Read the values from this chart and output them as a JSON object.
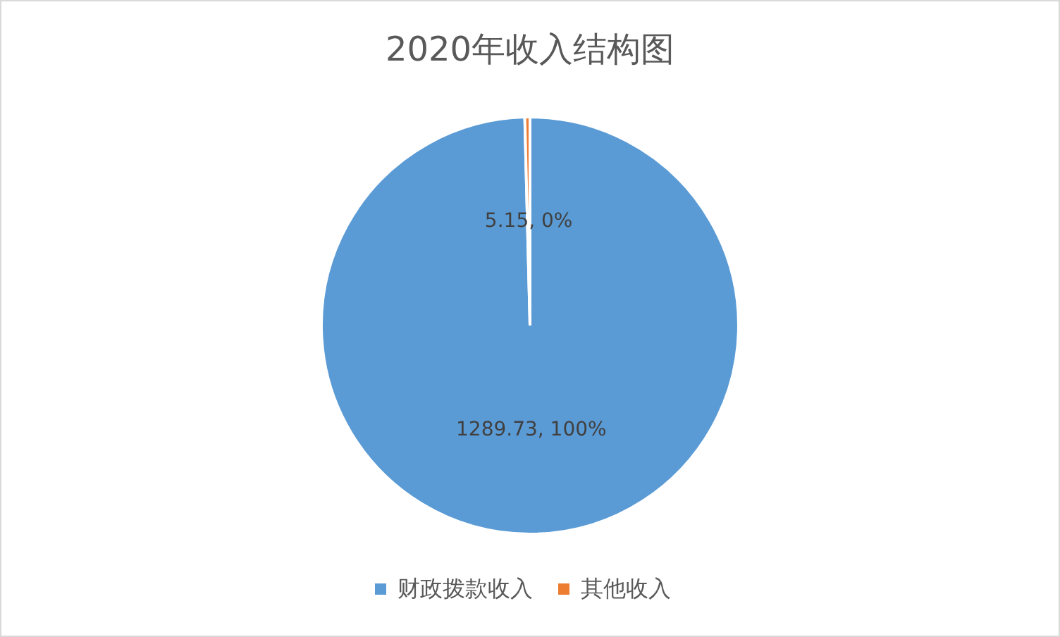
{
  "chart_data": {
    "type": "pie",
    "title": "2020年收入结构图",
    "categories": [
      "财政拨款收入",
      "其他收入"
    ],
    "values": [
      1289.73,
      5.15
    ],
    "colors": [
      "#5b9bd5",
      "#ed7d31"
    ],
    "value_labels": [
      "1289.73, 100%",
      "5.15, 0%"
    ],
    "legend": "bottom"
  }
}
